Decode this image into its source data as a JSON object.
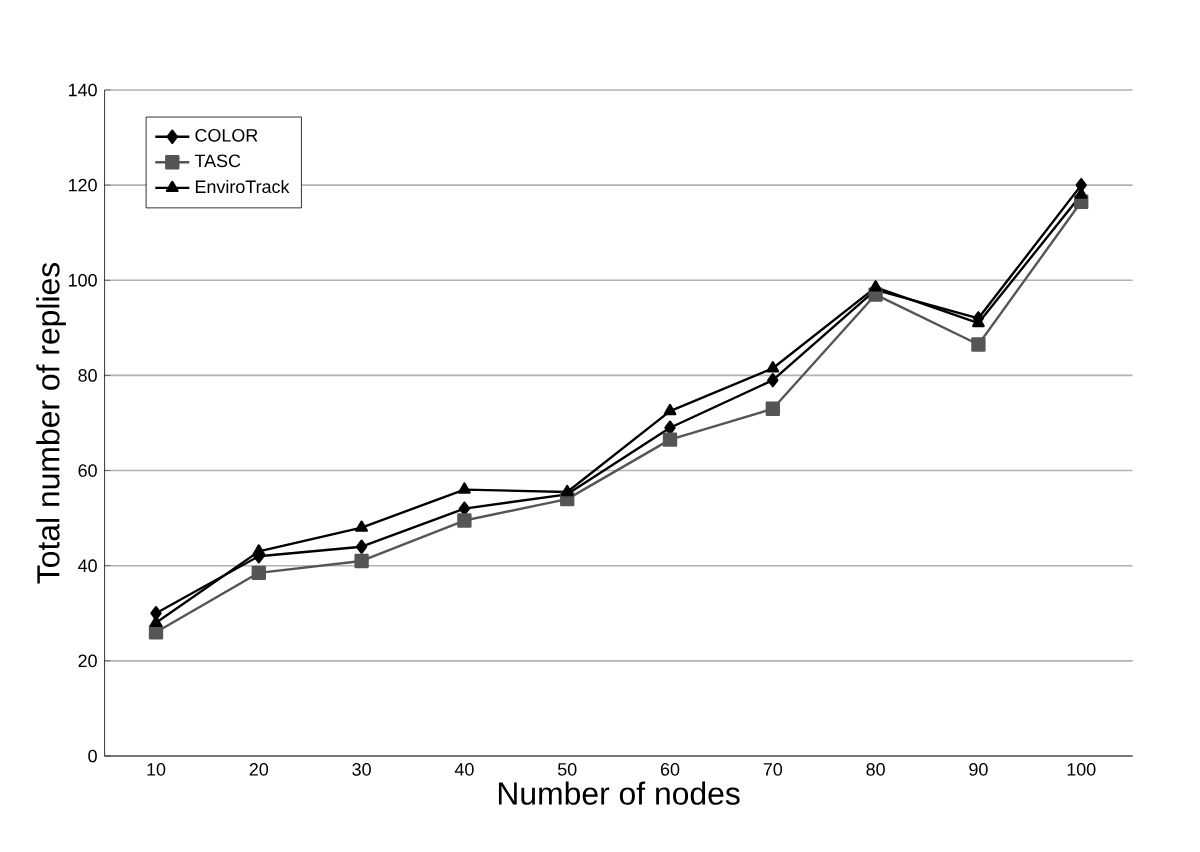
{
  "chart_data": {
    "type": "line",
    "xlabel": "Number of nodes",
    "ylabel": "Total number of replies",
    "categories": [
      "10",
      "20",
      "30",
      "40",
      "50",
      "60",
      "70",
      "80",
      "90",
      "100"
    ],
    "series": [
      {
        "name": "COLOR",
        "color": "#000000",
        "marker": "diamond",
        "values": [
          30,
          42,
          44,
          52,
          55,
          69,
          79,
          98,
          92,
          120
        ]
      },
      {
        "name": "TASC",
        "color": "#555555",
        "marker": "square",
        "values": [
          26,
          38.5,
          41,
          49.5,
          54,
          66.5,
          73,
          97,
          86.5,
          116.5
        ]
      },
      {
        "name": "EnviroTrack",
        "color": "#000000",
        "marker": "triangle",
        "values": [
          28,
          43,
          48,
          56,
          55.5,
          72.5,
          81.5,
          98.5,
          91,
          118
        ]
      }
    ],
    "ylim": [
      0,
      140
    ],
    "yticks": [
      0,
      20,
      40,
      60,
      80,
      100,
      120,
      140
    ],
    "grid": "y",
    "legend": "top left",
    "line_style": "solid"
  }
}
